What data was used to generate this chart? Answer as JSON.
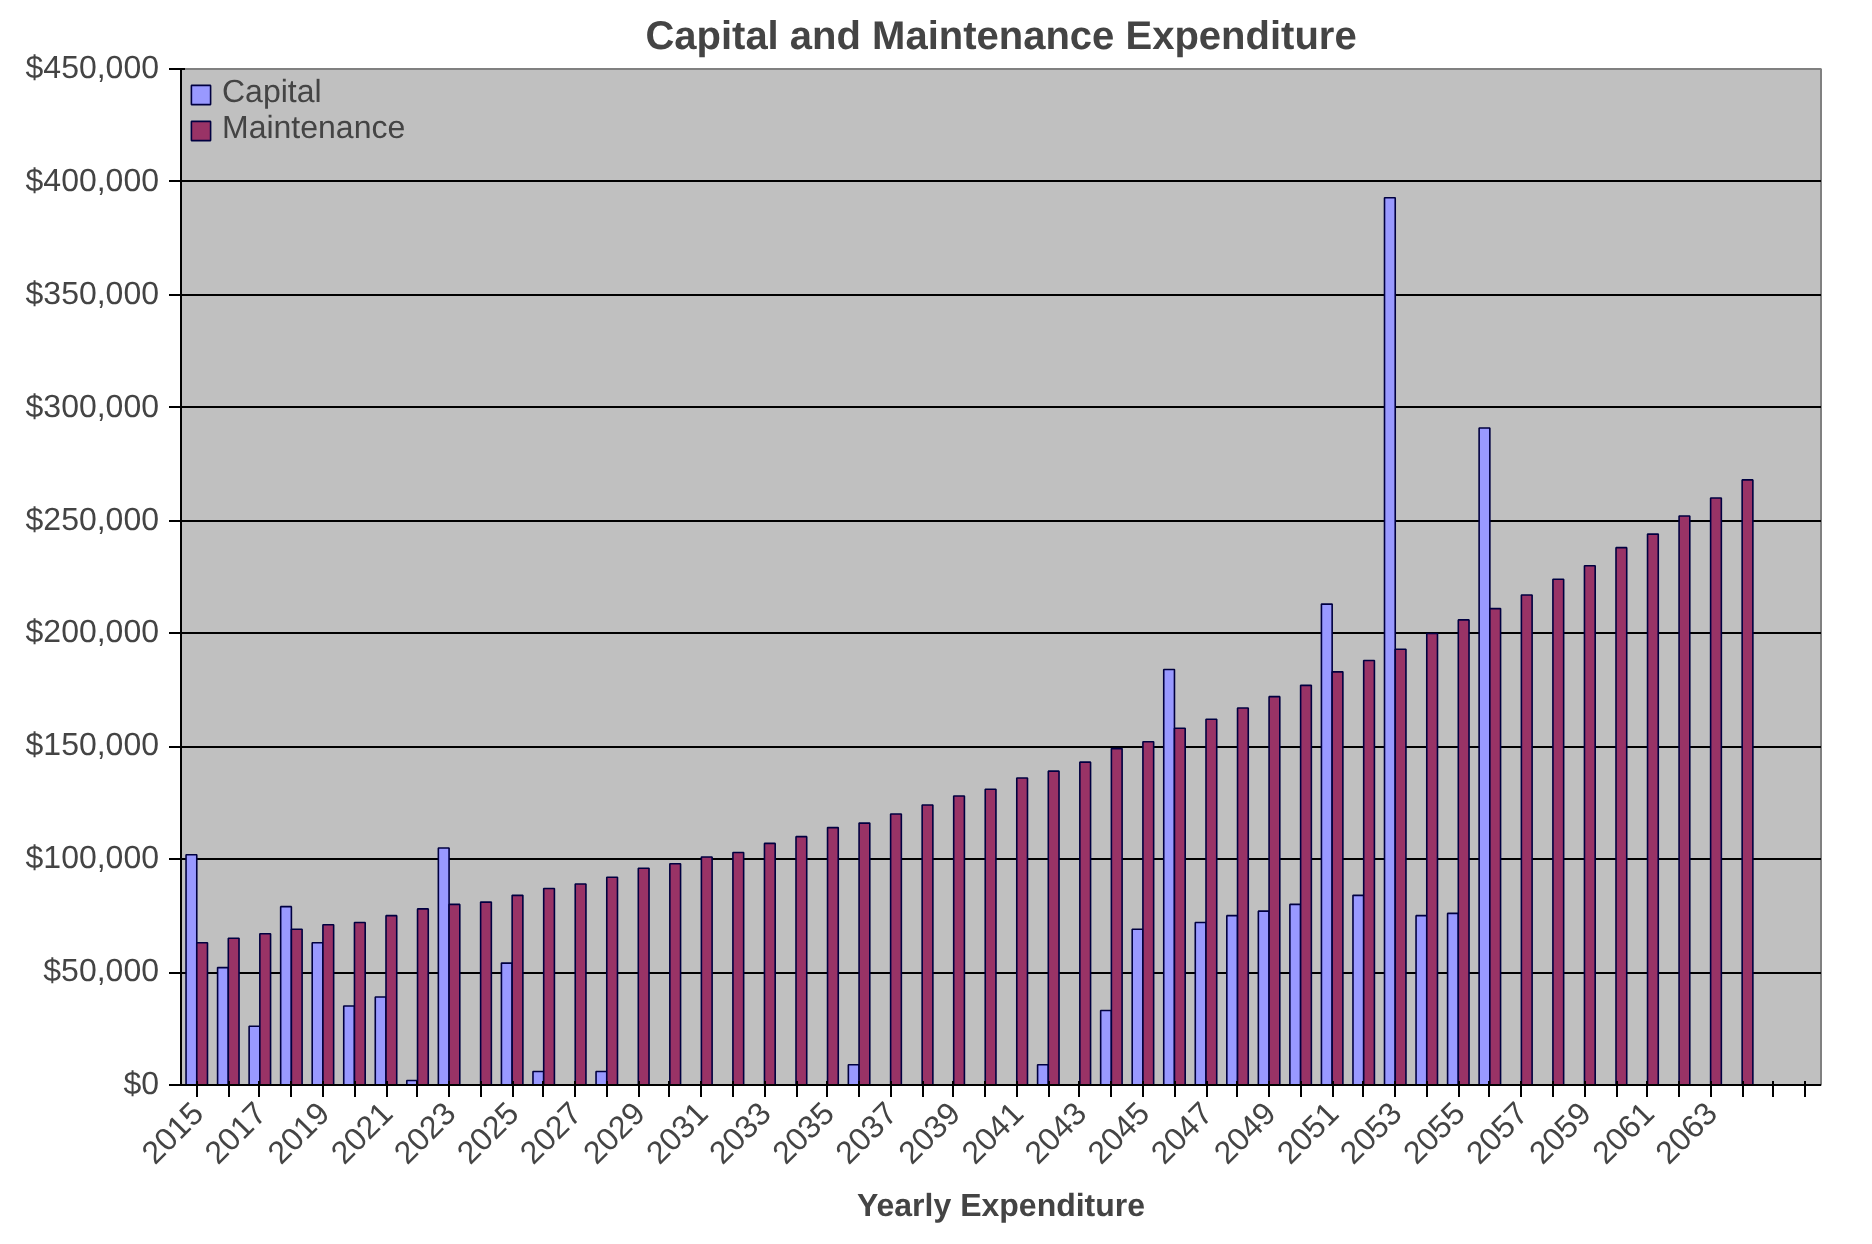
{
  "chart_data": {
    "type": "bar",
    "title": "Capital and Maintenance Expenditure",
    "xlabel": "Yearly Expenditure",
    "categories": [
      "2015",
      null,
      "2017",
      null,
      "2019",
      null,
      "2021",
      null,
      "2023",
      null,
      "2025",
      null,
      "2027",
      null,
      "2029",
      null,
      "2031",
      null,
      "2033",
      null,
      "2035",
      null,
      "2037",
      null,
      "2039",
      null,
      "2041",
      null,
      "2043",
      null,
      "2045",
      null,
      "2047",
      null,
      "2049",
      null,
      "2051",
      null,
      "2053",
      null,
      "2055",
      null,
      "2057",
      null,
      "2059",
      null,
      "2061",
      null,
      "2063",
      null,
      null,
      null
    ],
    "series": [
      {
        "name": "Capital",
        "color": "#9999ff",
        "values": [
          102000,
          52000,
          26000,
          79000,
          63000,
          35000,
          39000,
          2000,
          105000,
          null,
          54000,
          6000,
          null,
          6000,
          null,
          null,
          null,
          null,
          null,
          null,
          null,
          9000,
          null,
          null,
          null,
          null,
          null,
          9000,
          null,
          33000,
          69000,
          184000,
          72000,
          75000,
          77000,
          80000,
          213000,
          84000,
          393000,
          75000,
          76000,
          291000,
          null,
          null,
          null,
          null,
          null,
          null,
          null,
          null,
          null,
          null
        ]
      },
      {
        "name": "Maintenance",
        "color": "#993366",
        "values": [
          63000,
          65000,
          67000,
          69000,
          71000,
          72000,
          75000,
          78000,
          80000,
          81000,
          84000,
          87000,
          89000,
          92000,
          96000,
          98000,
          101000,
          103000,
          107000,
          110000,
          114000,
          116000,
          120000,
          124000,
          128000,
          131000,
          136000,
          139000,
          143000,
          149000,
          152000,
          158000,
          162000,
          167000,
          172000,
          177000,
          183000,
          188000,
          193000,
          200000,
          206000,
          211000,
          217000,
          224000,
          230000,
          238000,
          244000,
          252000,
          260000,
          268000,
          null,
          null
        ]
      }
    ],
    "ylim": [
      0,
      450000
    ],
    "yticks": [
      {
        "value": 0,
        "label": "$0"
      },
      {
        "value": 50000,
        "label": "$50,000"
      },
      {
        "value": 100000,
        "label": "$100,000"
      },
      {
        "value": 150000,
        "label": "$150,000"
      },
      {
        "value": 200000,
        "label": "$200,000"
      },
      {
        "value": 250000,
        "label": "$250,000"
      },
      {
        "value": 300000,
        "label": "$300,000"
      },
      {
        "value": 350000,
        "label": "$350,000"
      },
      {
        "value": 400000,
        "label": "$400,000"
      },
      {
        "value": 450000,
        "label": "$450,000"
      }
    ],
    "grid": "y",
    "legend": "top left"
  }
}
